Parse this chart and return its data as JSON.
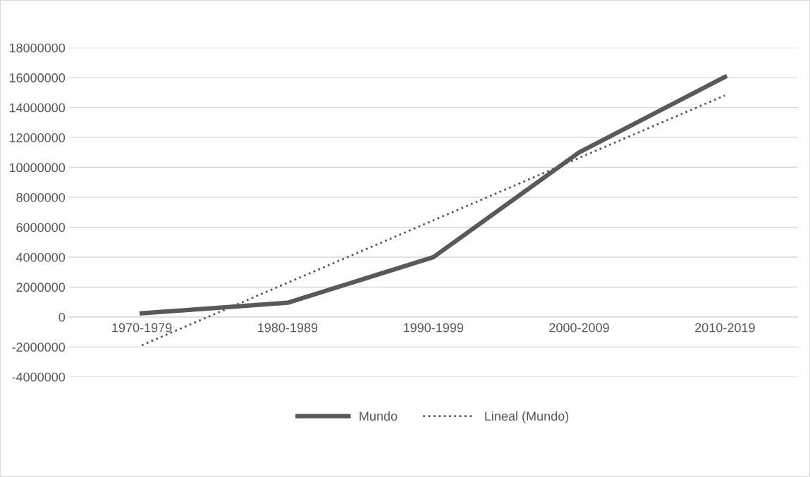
{
  "chart_data": {
    "type": "line",
    "categories": [
      "1970-1979",
      "1980-1989",
      "1990-1999",
      "2000-2009",
      "2010-2019"
    ],
    "series": [
      {
        "name": "Mundo",
        "color": "#595959",
        "values": [
          250000,
          950000,
          4000000,
          11000000,
          16050000
        ],
        "line_style": "solid"
      },
      {
        "name": "Lineal (Mundo)",
        "color": "#595959",
        "values": [
          -1890000,
          2285000,
          6460000,
          10635000,
          14810000
        ],
        "line_style": "dotted"
      }
    ],
    "ylim": [
      -4000000,
      18000000
    ],
    "yticks": [
      -4000000,
      -2000000,
      0,
      2000000,
      4000000,
      6000000,
      8000000,
      10000000,
      12000000,
      14000000,
      16000000,
      18000000
    ],
    "grid": "y",
    "legend": "bottom",
    "marker": "none"
  }
}
